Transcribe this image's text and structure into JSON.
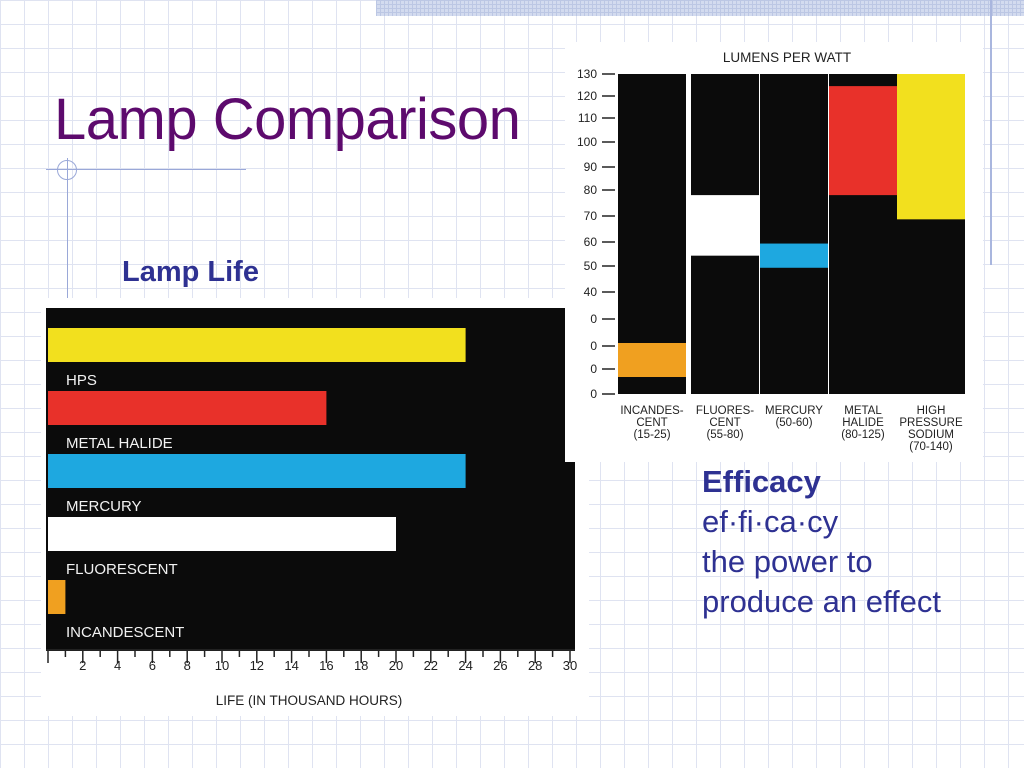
{
  "slide": {
    "title": "Lamp Comparison",
    "lamp_life_label": "Lamp Life",
    "efficacy": {
      "title": "Efficacy",
      "pronunciation": "ef·fi·ca·cy",
      "definition_line1": "the power to",
      "definition_line2": "produce an effect"
    }
  },
  "chart_data": [
    {
      "type": "bar",
      "orientation": "horizontal",
      "xlabel": "LIFE (IN THOUSAND HOURS)",
      "xlim": [
        0,
        30
      ],
      "x_ticks": [
        "2",
        "4",
        "6",
        "8",
        "10",
        "12",
        "14",
        "16",
        "18",
        "20",
        "22",
        "24",
        "26",
        "28",
        "30"
      ],
      "categories": [
        "HPS",
        "METAL HALIDE",
        "MERCURY",
        "FLUORESCENT",
        "INCANDESCENT"
      ],
      "values": [
        24,
        16,
        24,
        20,
        1
      ],
      "colors": [
        "#f2e01e",
        "#e8312a",
        "#1ea8e0",
        "#ffffff",
        "#f0a020"
      ]
    },
    {
      "type": "bar",
      "orientation": "vertical-range",
      "title": "LUMENS PER WATT",
      "y_ticks": [
        "130",
        "120",
        "110",
        "100",
        "90",
        "80",
        "70",
        "60",
        "50",
        "40",
        "0",
        "0",
        "0",
        "0"
      ],
      "categories": [
        {
          "line1": "INCANDES-",
          "line2": "CENT",
          "line3": "(15-25)"
        },
        {
          "line1": "FLUORES-",
          "line2": "CENT",
          "line3": "(55-80)"
        },
        {
          "line1": "MERCURY",
          "line2": "(50-60)",
          "line3": ""
        },
        {
          "line1": "METAL",
          "line2": "HALIDE",
          "line3": "(80-125)"
        },
        {
          "line1": "HIGH",
          "line2": "PRESSURE",
          "line3": "SODIUM",
          "line4": "(70-140)"
        }
      ],
      "ranges": [
        [
          15,
          25
        ],
        [
          55,
          80
        ],
        [
          50,
          60
        ],
        [
          80,
          125
        ],
        [
          70,
          140
        ]
      ],
      "colors": [
        "#f0a020",
        "#ffffff",
        "#1ea8e0",
        "#e8312a",
        "#f2e01e"
      ]
    }
  ]
}
